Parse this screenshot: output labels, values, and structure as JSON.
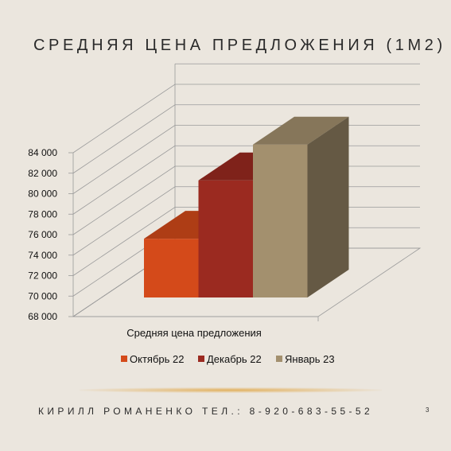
{
  "slide": {
    "title": "СРЕДНЯЯ ЦЕНА ПРЕДЛОЖЕНИЯ (1М2)",
    "footer": "КИРИЛЛ РОМАНЕНКО ТЕЛ.: 8-920-683-55-52",
    "page_number": "3"
  },
  "chart_data": {
    "type": "bar",
    "view": "3d-clustered-column",
    "categories": [
      "Средняя цена предложения"
    ],
    "series": [
      {
        "name": "Октябрь 22",
        "values": [
          75600
        ],
        "color": "#d44a1a"
      },
      {
        "name": "Декабрь 22",
        "values": [
          81300
        ],
        "color": "#9b2a20"
      },
      {
        "name": "Январь 23",
        "values": [
          84800
        ],
        "color": "#a3906e"
      }
    ],
    "yticks": [
      "68 000",
      "70 000",
      "72 000",
      "74 000",
      "76 000",
      "78 000",
      "80 000",
      "82 000",
      "84 000"
    ],
    "ylim": [
      68000,
      84000
    ],
    "xlabel": "",
    "ylabel": "",
    "grid": true,
    "legend": "bottom"
  }
}
